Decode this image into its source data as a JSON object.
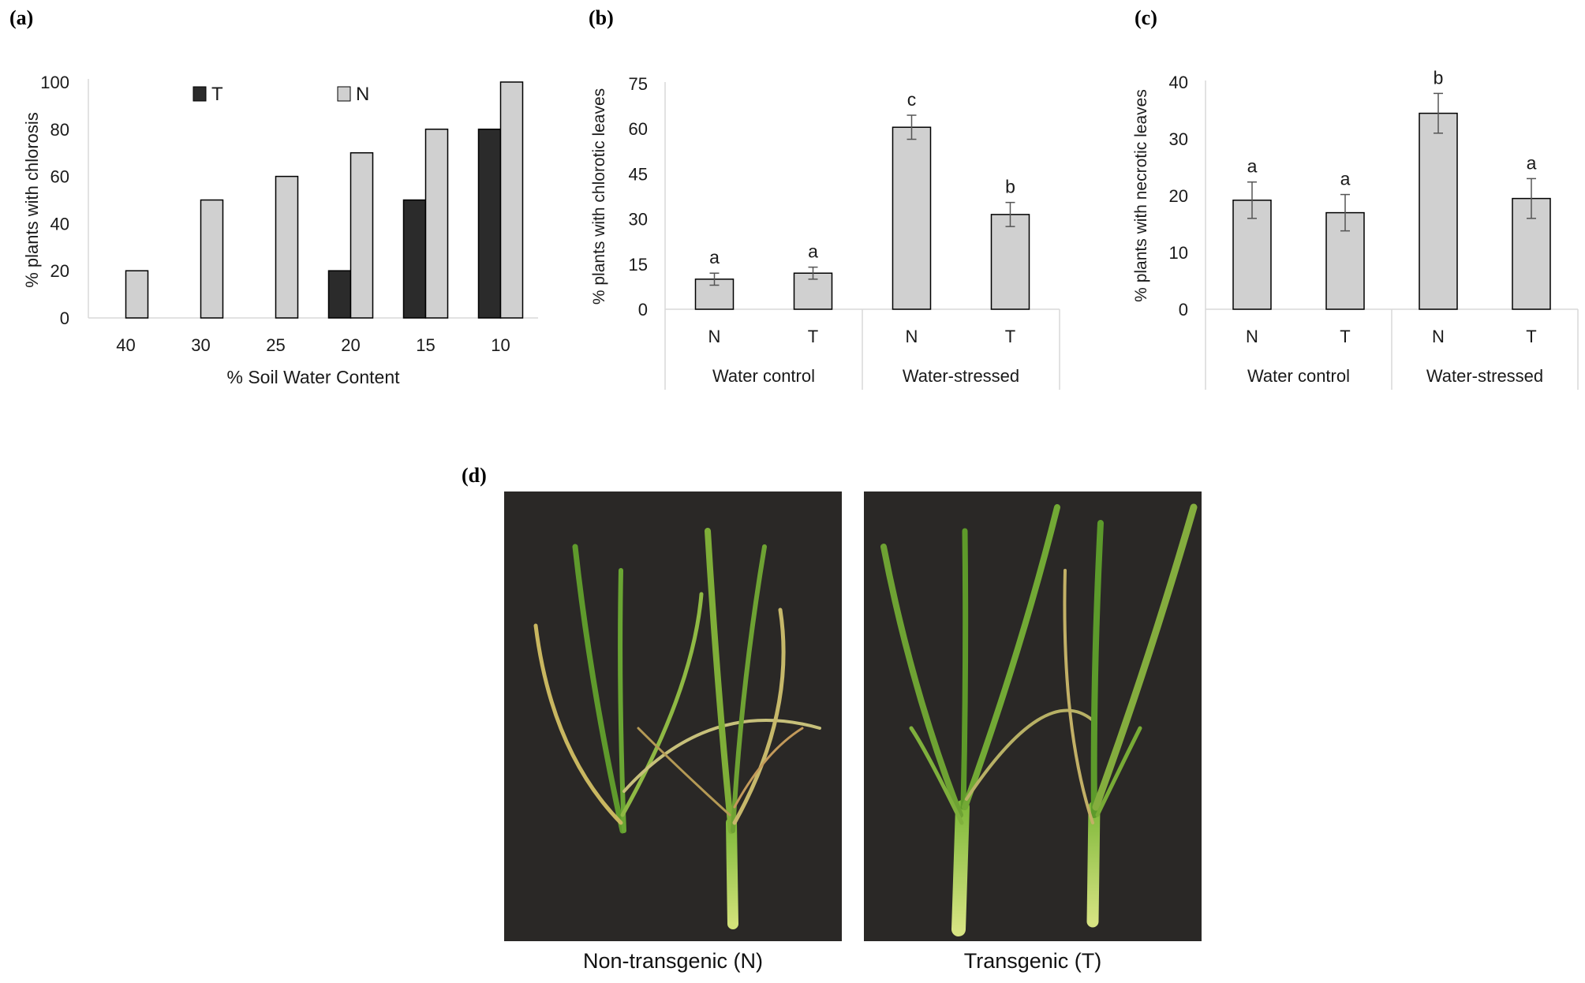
{
  "panels": {
    "a": "(a)",
    "b": "(b)",
    "c": "(c)",
    "d": "(d)"
  },
  "colors": {
    "T": "#2b2b2b",
    "N": "#d0d0d0",
    "axis": "#d9d9d9"
  },
  "chart_data": [
    {
      "type": "bar",
      "id": "a",
      "title": "",
      "xlabel": "% Soil Water Content",
      "ylabel": "% plants with chlorosis",
      "ylim": [
        0,
        100
      ],
      "yticks": [
        0,
        20,
        40,
        60,
        80,
        100
      ],
      "categories": [
        "40",
        "30",
        "25",
        "20",
        "15",
        "10"
      ],
      "series": [
        {
          "name": "T",
          "values": [
            0,
            0,
            0,
            20,
            50,
            80
          ]
        },
        {
          "name": "N",
          "values": [
            20,
            50,
            60,
            70,
            80,
            100
          ]
        }
      ],
      "legend": "top"
    },
    {
      "type": "bar",
      "id": "b",
      "title": "",
      "ylabel": "% plants with chlorotic leaves",
      "ylim": [
        0,
        75
      ],
      "yticks": [
        0,
        15,
        30,
        45,
        60,
        75
      ],
      "categories": [
        "N",
        "T",
        "N",
        "T"
      ],
      "groups": [
        "Water control",
        "Water-stressed"
      ],
      "values": [
        10,
        12,
        60.5,
        31.5
      ],
      "errors": [
        2,
        2,
        4,
        4
      ],
      "letters": [
        "a",
        "a",
        "c",
        "b"
      ]
    },
    {
      "type": "bar",
      "id": "c",
      "title": "",
      "ylabel": "% plants with necrotic leaves",
      "ylim": [
        0,
        40
      ],
      "yticks": [
        0,
        10,
        20,
        30,
        40
      ],
      "categories": [
        "N",
        "T",
        "N",
        "T"
      ],
      "groups": [
        "Water control",
        "Water-stressed"
      ],
      "values": [
        19.2,
        17,
        34.5,
        19.5
      ],
      "errors": [
        3.2,
        3.2,
        3.5,
        3.5
      ],
      "letters": [
        "a",
        "a",
        "b",
        "a"
      ]
    }
  ],
  "photos": [
    {
      "caption": "Non-transgenic (N)"
    },
    {
      "caption": "Transgenic (T)"
    }
  ]
}
